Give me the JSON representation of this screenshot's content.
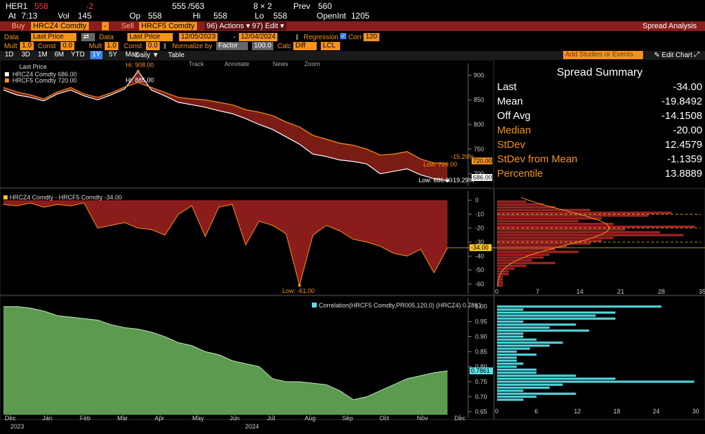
{
  "header": {
    "ticker": "HER1",
    "last": "558",
    "change": "-2",
    "bid_ask": "555 /563",
    "size": "8 × 2",
    "prev_label": "Prev",
    "prev": "560",
    "at_label": "At",
    "at_time": "7:13",
    "vol_label": "Vol",
    "vol": "145",
    "op_label": "Op",
    "op": "558",
    "hi_label": "Hi",
    "hi": "558",
    "lo_label": "Lo",
    "lo": "558",
    "oi_label": "OpenInt",
    "oi": "1205"
  },
  "toolbar": {
    "buy_label": "Buy",
    "buy_ticker": "HRCZ4 Comdty",
    "minus_label": "-",
    "sell_label": "Sell",
    "sell_ticker": "HRCF5 Comdty",
    "actions_label": "96) Actions ▾",
    "edit_label": "97) Edit ▾",
    "title": "Spread Analysis"
  },
  "settings": {
    "data_label": "Data",
    "data1_value": "Last Price",
    "data2_label": "Data",
    "data2_value": "Last Price",
    "date_start": "12/05/2023",
    "date_sep": "-",
    "date_end": "12/04/2024",
    "regression_label": "Regression",
    "corr_label": "Corr",
    "corr_value": "120",
    "mult_label": "Mult",
    "mult1": "1.0",
    "const_label": "Const",
    "const1": "0.0",
    "mult2_label": "Mult",
    "mult2": "1.0",
    "const2_label": "Const",
    "const2": "0.0",
    "normalize_label": "Normalize by",
    "normalize_value": "Factor",
    "normalize_factor": "100.0",
    "calc_label": "Calc",
    "calc_value": "Diff",
    "lcl_value": "LCL"
  },
  "periods": [
    "1D",
    "3D",
    "1M",
    "6M",
    "YTD",
    "1Y",
    "5Y",
    "Max"
  ],
  "active_period": "1Y",
  "frequency": "Daily ▼",
  "table_label": "Table",
  "add_studies_placeholder": "Add Studies or Events",
  "edit_chart_label": "Edit Chart",
  "chart_tools": [
    "Track",
    "Annotate",
    "News",
    "Zoom"
  ],
  "top_legend": {
    "title": "Last Price",
    "s1": "HRCZ4 Comdty  686.00",
    "s2": "HRCF5 Comdty  720.00",
    "hi1": "Hi: 908.00",
    "hi2": "Hi: 885.00",
    "low1": "Low: 686.00",
    "low2": "Low: 720.00",
    "pct1": "-15.29%",
    "pct2": "-19.29%",
    "last1_tag": "720.00",
    "last2_tag": "686.00"
  },
  "spread_legend": {
    "label": "HRCZ4 Comdty - HRCF5 Comdty -34.00",
    "low": "Low: -61.00",
    "last_tag": "-34.00"
  },
  "corr_legend": {
    "label": "Correlation(HRCF5 Comdty,PR005,120,0) (HRCZ4)  0.7861",
    "last_tag": "0.7861"
  },
  "summary": {
    "title": "Spread Summary",
    "rows": [
      {
        "k": "Last",
        "v": "-34.00",
        "color": "#ffffff"
      },
      {
        "k": "Mean",
        "v": "-19.8492",
        "color": "#ffffff"
      },
      {
        "k": "Off Avg",
        "v": "-14.1508",
        "color": "#ffffff"
      },
      {
        "k": "Median",
        "v": "-20.00",
        "color": "#f7931a"
      },
      {
        "k": "StDev",
        "v": "12.4579",
        "color": "#f7931a"
      },
      {
        "k": "StDev from Mean",
        "v": "-1.1359",
        "color": "#f7931a"
      },
      {
        "k": "Percentile",
        "v": "13.8889",
        "color": "#f7931a"
      }
    ]
  },
  "x_axis": {
    "months": [
      "Dec",
      "Jan",
      "Feb",
      "Mar",
      "Apr",
      "May",
      "Jun",
      "Jul",
      "Aug",
      "Sep",
      "Oct",
      "Nov",
      "Dec"
    ],
    "years": [
      "2023",
      "2024"
    ]
  },
  "chart_data": [
    {
      "type": "line",
      "name": "price",
      "series": [
        {
          "name": "HRCZ4 Comdty",
          "color": "#ffffff",
          "values": [
            870,
            860,
            855,
            848,
            862,
            870,
            858,
            850,
            860,
            872,
            908,
            870,
            858,
            845,
            840,
            835,
            828,
            822,
            812,
            800,
            790,
            775,
            760,
            740,
            735,
            728,
            725,
            720,
            700,
            705,
            710,
            698,
            690,
            686
          ]
        },
        {
          "name": "HRCF5 Comdty",
          "color": "#f7931a",
          "values": [
            875,
            866,
            860,
            852,
            866,
            875,
            862,
            855,
            864,
            876,
            885,
            875,
            865,
            855,
            852,
            850,
            845,
            840,
            830,
            825,
            818,
            805,
            795,
            778,
            770,
            762,
            758,
            750,
            738,
            740,
            745,
            730,
            722,
            720
          ]
        }
      ],
      "ylim": [
        680,
        920
      ],
      "yticks": [
        700,
        750,
        800,
        850,
        900
      ]
    },
    {
      "type": "area",
      "name": "spread",
      "series": [
        {
          "name": "HRCZ4 Comdty - HRCF5 Comdty",
          "color": "#8b1c1c",
          "values": [
            -3,
            -4,
            -2,
            -5,
            -3,
            -4,
            -2,
            -20,
            -18,
            -16,
            -20,
            -21,
            -25,
            -10,
            -4,
            -26,
            -5,
            -3,
            -32,
            -15,
            -18,
            -24,
            -61,
            -25,
            -18,
            -22,
            -28,
            -30,
            -33,
            -38,
            -40,
            -35,
            -52,
            -34
          ]
        }
      ],
      "ylim": [
        -65,
        4
      ],
      "yticks": [
        0,
        -10,
        -20,
        -30,
        -40,
        -50,
        -60
      ]
    },
    {
      "type": "area",
      "name": "correlation",
      "series": [
        {
          "name": "Correlation(HRCF5 Comdty,PR005,120,0) (HRCZ4)",
          "color": "#5aa35a",
          "values": [
            1.0,
            1.0,
            0.995,
            0.985,
            0.97,
            0.965,
            0.96,
            0.955,
            0.94,
            0.93,
            0.925,
            0.915,
            0.9,
            0.88,
            0.87,
            0.85,
            0.84,
            0.82,
            0.81,
            0.8,
            0.76,
            0.75,
            0.75,
            0.745,
            0.74,
            0.72,
            0.69,
            0.7,
            0.72,
            0.74,
            0.76,
            0.77,
            0.78,
            0.7861
          ]
        }
      ],
      "ylim": [
        0.64,
        1.02
      ],
      "yticks": [
        1.0,
        0.95,
        0.9,
        0.85,
        0.8,
        0.75,
        0.7,
        0.65
      ]
    },
    {
      "type": "bar",
      "name": "spread-histogram",
      "orientation": "horizontal",
      "categories": [
        -1,
        -3,
        -5,
        -7,
        -9,
        -11,
        -13,
        -15,
        -17,
        -19,
        -21,
        -23,
        -25,
        -27,
        -29,
        -31,
        -33,
        -35,
        -37,
        -39,
        -41,
        -43,
        -45,
        -47,
        -49,
        -51,
        -53,
        -55,
        -57,
        -59,
        -61
      ],
      "values": [
        5,
        8,
        10,
        16,
        30,
        26,
        18,
        14,
        20,
        34,
        22,
        28,
        32,
        20,
        18,
        16,
        12,
        10,
        14,
        9,
        8,
        6,
        10,
        5,
        3,
        2,
        2,
        1,
        1,
        1,
        1
      ],
      "xticks": [
        0,
        7,
        14,
        21,
        28,
        35
      ],
      "xlim": [
        0,
        35
      ]
    },
    {
      "type": "bar",
      "name": "correlation-histogram",
      "orientation": "horizontal",
      "categories": [
        1.0,
        0.99,
        0.98,
        0.97,
        0.96,
        0.95,
        0.94,
        0.93,
        0.92,
        0.91,
        0.9,
        0.89,
        0.88,
        0.87,
        0.86,
        0.85,
        0.84,
        0.83,
        0.82,
        0.81,
        0.8,
        0.79,
        0.78,
        0.77,
        0.76,
        0.75,
        0.74,
        0.73,
        0.72,
        0.71,
        0.7,
        0.69
      ],
      "values": [
        25,
        4,
        18,
        15,
        18,
        4,
        12,
        8,
        14,
        4,
        4,
        6,
        10,
        8,
        5,
        3,
        6,
        3,
        3,
        4,
        3,
        6,
        6,
        12,
        18,
        30,
        10,
        8,
        4,
        12,
        6,
        4
      ],
      "xticks": [
        0,
        6,
        12,
        18,
        24,
        30
      ],
      "xlim": [
        0,
        31
      ]
    }
  ]
}
